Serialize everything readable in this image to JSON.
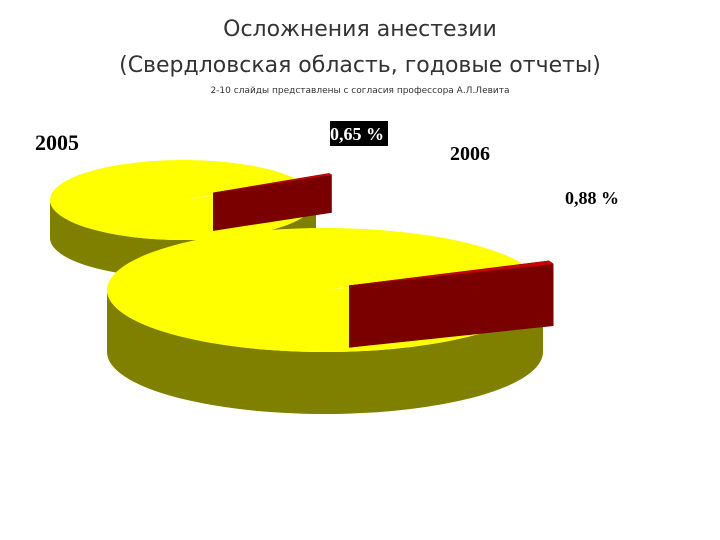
{
  "header": {
    "title": [
      "Осложнения анестезии",
      "(Свердловская область, годовые отчеты)"
    ],
    "subtitle": "2-10 слайды представлены с согласия профессора  А.Л.Левита"
  },
  "chart_data": [
    {
      "type": "pie3d",
      "title": "2005",
      "values": [
        99.35,
        0.65
      ],
      "value_labels": [
        null,
        "0,65 %"
      ],
      "colors": [
        "#ffff00",
        "#cc0000"
      ],
      "side_colors": [
        "#808000",
        "#7a0000"
      ]
    },
    {
      "type": "pie3d",
      "title": "2006",
      "values": [
        99.12,
        0.88
      ],
      "value_labels": [
        null,
        "0,88 %"
      ],
      "colors": [
        "#ffff00",
        "#cc0000"
      ],
      "side_colors": [
        "#808000",
        "#7a0000"
      ]
    }
  ]
}
